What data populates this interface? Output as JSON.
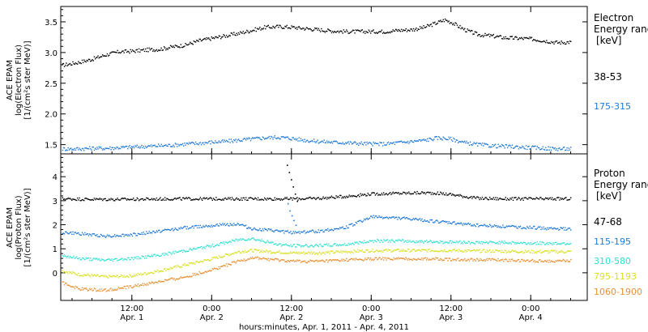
{
  "x_axis": {
    "title": "hours:minutes, Apr.  1, 2011 - Apr.  4, 2011",
    "ticks": [
      {
        "t": 12,
        "time": "12:00",
        "date": "Apr. 1"
      },
      {
        "t": 24,
        "time": "0:00",
        "date": "Apr. 2"
      },
      {
        "t": 36,
        "time": "12:00",
        "date": "Apr. 2"
      },
      {
        "t": 48,
        "time": "0:00",
        "date": "Apr. 3"
      },
      {
        "t": 60,
        "time": "12:00",
        "date": "Apr. 3"
      },
      {
        "t": 72,
        "time": "0:00",
        "date": "Apr. 4"
      }
    ]
  },
  "electron": {
    "ylabel_lines": [
      "ACE EPAM",
      "log(Electron Flux)",
      "[1/(cm²s ster MeV)]"
    ],
    "legend_title": [
      "Electron",
      "Energy ranges"
    ],
    "legend_unit": "[keV]"
  },
  "proton": {
    "ylabel_lines": [
      "ACE EPAM",
      "log(Proton Flux)",
      "[1/(cm²s ster MeV)]"
    ],
    "legend_title": [
      "Proton",
      "Energy ranges"
    ],
    "legend_unit": "[keV]"
  },
  "chart_data": [
    {
      "type": "scatter",
      "x_unit": "hours since Apr. 1, 2011 0:00",
      "xlim": [
        1.3,
        80.5
      ],
      "ylim": [
        1.35,
        3.75
      ],
      "yticks": [
        1.5,
        2.0,
        2.5,
        3.0,
        3.5
      ],
      "ytick_labels": [
        "1.5",
        "2.0",
        "2.5",
        "3.0",
        "3.5"
      ],
      "series": [
        {
          "name": "38-53",
          "color": "#000000",
          "x": [
            1.5,
            4,
            6,
            8,
            10,
            12,
            14,
            16,
            18,
            20,
            22,
            24,
            26,
            28,
            30,
            32,
            34,
            36,
            38,
            40,
            42,
            44,
            46,
            48,
            50,
            52,
            54,
            56,
            58,
            59,
            60,
            62,
            64,
            66,
            68,
            70,
            72,
            74,
            76,
            78
          ],
          "y": [
            2.8,
            2.85,
            2.9,
            2.97,
            3.02,
            3.03,
            3.05,
            3.06,
            3.1,
            3.13,
            3.2,
            3.24,
            3.28,
            3.32,
            3.37,
            3.42,
            3.43,
            3.42,
            3.4,
            3.38,
            3.36,
            3.35,
            3.35,
            3.35,
            3.35,
            3.37,
            3.38,
            3.42,
            3.5,
            3.54,
            3.5,
            3.38,
            3.3,
            3.28,
            3.25,
            3.24,
            3.23,
            3.2,
            3.17,
            3.18
          ]
        },
        {
          "name": "175-315",
          "color": "#1e78d8",
          "x": [
            1.5,
            4,
            6,
            8,
            10,
            12,
            14,
            16,
            18,
            20,
            22,
            24,
            26,
            28,
            30,
            32,
            34,
            36,
            38,
            40,
            42,
            44,
            46,
            48,
            50,
            52,
            54,
            56,
            58,
            60,
            62,
            64,
            66,
            68,
            70,
            72,
            74,
            76,
            78
          ],
          "y": [
            1.44,
            1.44,
            1.45,
            1.45,
            1.46,
            1.47,
            1.48,
            1.49,
            1.5,
            1.52,
            1.53,
            1.55,
            1.56,
            1.58,
            1.6,
            1.62,
            1.63,
            1.61,
            1.58,
            1.56,
            1.55,
            1.54,
            1.53,
            1.52,
            1.52,
            1.54,
            1.56,
            1.58,
            1.62,
            1.6,
            1.54,
            1.51,
            1.49,
            1.48,
            1.47,
            1.46,
            1.45,
            1.44,
            1.44
          ]
        }
      ]
    },
    {
      "type": "scatter",
      "x_unit": "hours since Apr. 1, 2011 0:00",
      "xlim": [
        1.3,
        80.5
      ],
      "ylim": [
        -1.15,
        4.95
      ],
      "yticks": [
        0,
        1,
        2,
        3,
        4
      ],
      "ytick_labels": [
        "0",
        "1",
        "2",
        "3",
        "4"
      ],
      "series": [
        {
          "name": "47-68",
          "color": "#000000",
          "x": [
            1.5,
            6,
            12,
            18,
            24,
            30,
            34,
            36,
            40,
            44,
            48,
            52,
            56,
            58,
            60,
            64,
            68,
            72,
            76,
            78
          ],
          "y": [
            3.1,
            3.08,
            3.08,
            3.1,
            3.1,
            3.1,
            3.1,
            3.1,
            3.12,
            3.2,
            3.3,
            3.33,
            3.35,
            3.33,
            3.28,
            3.12,
            3.1,
            3.1,
            3.1,
            3.1
          ]
        },
        {
          "name": "115-195",
          "color": "#1e78d8",
          "x": [
            1.5,
            4,
            8,
            12,
            16,
            20,
            24,
            28,
            30,
            34,
            36,
            40,
            44,
            48,
            52,
            56,
            60,
            64,
            68,
            72,
            76,
            78
          ],
          "y": [
            1.7,
            1.65,
            1.55,
            1.6,
            1.75,
            1.9,
            2.0,
            2.05,
            1.85,
            1.75,
            1.7,
            1.75,
            1.9,
            2.35,
            2.3,
            2.2,
            2.1,
            2.0,
            1.95,
            1.9,
            1.85,
            1.85
          ]
        },
        {
          "name": "310-580",
          "color": "#30e0d0",
          "x": [
            1.5,
            4,
            8,
            12,
            16,
            20,
            24,
            28,
            30,
            34,
            36,
            40,
            44,
            48,
            52,
            56,
            60,
            64,
            68,
            72,
            76,
            78
          ],
          "y": [
            0.75,
            0.62,
            0.55,
            0.62,
            0.75,
            0.95,
            1.15,
            1.4,
            1.45,
            1.2,
            1.15,
            1.15,
            1.2,
            1.35,
            1.35,
            1.32,
            1.3,
            1.28,
            1.28,
            1.25,
            1.25,
            1.25
          ]
        },
        {
          "name": "795-1193",
          "color": "#d8e020",
          "x": [
            1.5,
            4,
            8,
            12,
            16,
            20,
            24,
            28,
            30,
            34,
            36,
            40,
            44,
            48,
            52,
            56,
            60,
            64,
            68,
            72,
            76,
            78
          ],
          "y": [
            0.1,
            -0.05,
            -0.15,
            -0.1,
            0.1,
            0.35,
            0.6,
            0.9,
            0.95,
            0.88,
            0.85,
            0.85,
            0.9,
            0.95,
            0.95,
            0.95,
            0.95,
            0.93,
            0.92,
            0.9,
            0.9,
            0.9
          ]
        },
        {
          "name": "1060-1900",
          "color": "#e89030",
          "x": [
            1.5,
            4,
            8,
            12,
            16,
            20,
            24,
            28,
            30,
            34,
            36,
            40,
            44,
            48,
            52,
            56,
            60,
            64,
            68,
            72,
            76,
            78
          ],
          "y": [
            -0.4,
            -0.65,
            -0.7,
            -0.55,
            -0.35,
            -0.15,
            0.15,
            0.5,
            0.65,
            0.55,
            0.5,
            0.5,
            0.55,
            0.6,
            0.6,
            0.6,
            0.58,
            0.57,
            0.55,
            0.52,
            0.52,
            0.52
          ]
        }
      ],
      "spikes": {
        "color_top": "#000000",
        "color_low": "#1e78d8",
        "top": {
          "x": [
            35.3,
            35.6,
            35.9,
            36.2,
            36.5,
            36.8
          ],
          "y": [
            4.5,
            4.2,
            3.9,
            3.6,
            3.3,
            3.0
          ]
        },
        "low": {
          "x": [
            35.4,
            35.7,
            36.0,
            36.3,
            36.6
          ],
          "y": [
            2.9,
            2.6,
            2.4,
            2.2,
            2.0
          ]
        }
      }
    }
  ]
}
